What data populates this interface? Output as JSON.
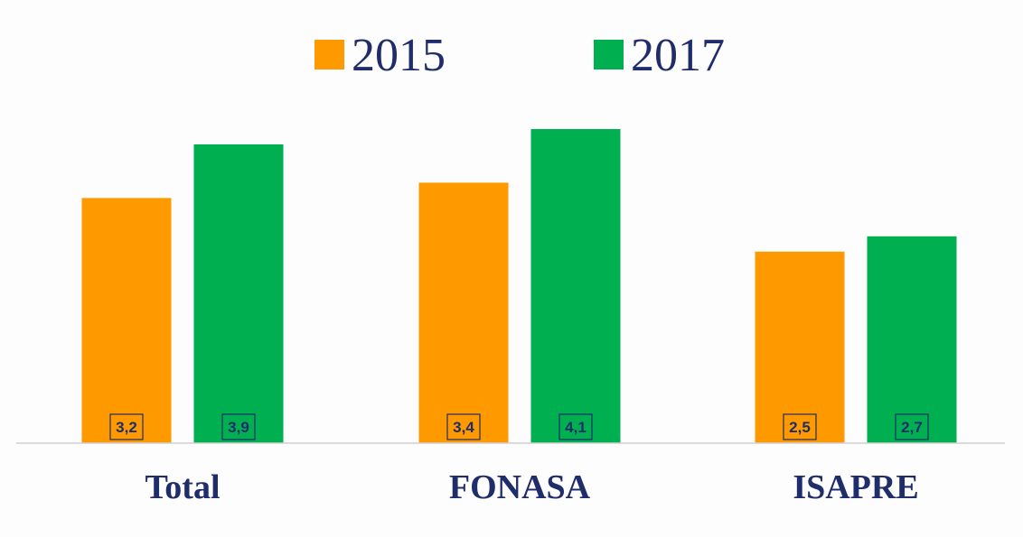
{
  "chart_data": {
    "type": "bar",
    "categories": [
      "Total",
      "FONASA",
      "ISAPRE"
    ],
    "series": [
      {
        "name": "2015",
        "color": "#ff9900",
        "values": [
          3.2,
          3.4,
          2.5
        ],
        "labels": [
          "3,2",
          "3,4",
          "2,5"
        ]
      },
      {
        "name": "2017",
        "color": "#00b050",
        "values": [
          3.9,
          4.1,
          2.7
        ],
        "labels": [
          "3,9",
          "4,1",
          "2,7"
        ]
      }
    ],
    "title": "",
    "xlabel": "",
    "ylabel": "",
    "ylim": [
      0,
      4.1
    ],
    "grid": false,
    "legend": "top-center",
    "data_labels": "inside-base"
  }
}
